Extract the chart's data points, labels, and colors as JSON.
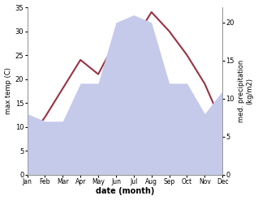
{
  "months": [
    "Jan",
    "Feb",
    "Mar",
    "Apr",
    "May",
    "Jun",
    "Jul",
    "Aug",
    "Sep",
    "Oct",
    "Nov",
    "Dec"
  ],
  "max_temp": [
    7,
    12,
    18,
    24,
    21,
    28,
    28,
    34,
    30,
    25,
    19,
    10.5
  ],
  "precipitation": [
    8,
    7,
    7,
    12,
    12,
    20,
    21,
    20,
    12,
    12,
    8,
    11
  ],
  "temp_color": "#993344",
  "precip_fill_color": "#c5caeb",
  "temp_ylim": [
    0,
    35
  ],
  "precip_ylim": [
    0,
    22
  ],
  "temp_yticks": [
    0,
    5,
    10,
    15,
    20,
    25,
    30,
    35
  ],
  "precip_yticks": [
    0,
    5,
    10,
    15,
    20
  ],
  "xlabel": "date (month)",
  "ylabel_left": "max temp (C)",
  "ylabel_right": "med. precipitation\n(kg/m2)",
  "background_color": "#ffffff"
}
